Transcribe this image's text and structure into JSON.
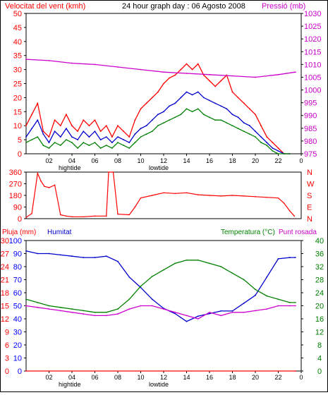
{
  "header": {
    "wind_label": "Velocitat del vent (kmh)",
    "title": "24 hour graph day : 06 Agosto 2008",
    "pressure_label": "Pressió (mb)"
  },
  "mid_labels": {
    "pluja": "Pluja (mm)",
    "humitat": "Humitat",
    "temperatura": "Temperatura (°C)",
    "punt_rosada": "Punt rosada"
  },
  "tide_labels": {
    "high": "hightide",
    "low": "lowtide"
  },
  "colors": {
    "red": "#ff0000",
    "blue": "#0000cc",
    "green": "#008000",
    "magenta": "#cc00cc",
    "pressure_axis": "#cc00cc",
    "left_axis_blue": "#0000ff",
    "left_axis_red": "#ff0000"
  },
  "chart_data": [
    {
      "type": "line",
      "name": "wind_pressure",
      "x_ticks": [
        "02",
        "04",
        "06",
        "08",
        "10",
        "12",
        "14",
        "16",
        "18",
        "20",
        "22",
        "0"
      ],
      "left_axis": {
        "label": "Velocitat del vent (kmh)",
        "range": [
          0,
          50
        ],
        "ticks": [
          0,
          5,
          10,
          15,
          20,
          25,
          30,
          35,
          40,
          45,
          50
        ]
      },
      "right_axis": {
        "label": "Pressió (mb)",
        "range": [
          975,
          1030
        ],
        "ticks": [
          975,
          980,
          985,
          990,
          995,
          1000,
          1005,
          1010,
          1015,
          1020,
          1025,
          1030
        ]
      },
      "series": [
        {
          "color": "red",
          "axis": "left",
          "hours": [
            0,
            0.5,
            1,
            1.5,
            2,
            2.5,
            3,
            3.5,
            4,
            4.5,
            5,
            5.5,
            6,
            6.5,
            7,
            7.5,
            8,
            8.5,
            9,
            9.5,
            10,
            10.5,
            11,
            11.5,
            12,
            12.5,
            13,
            13.5,
            14,
            14.5,
            15,
            15.5,
            16,
            16.5,
            17,
            17.5,
            18,
            18.5,
            19,
            19.5,
            20,
            20.5,
            21,
            21.5,
            22,
            22.5,
            23
          ],
          "values": [
            10,
            14,
            18,
            8,
            6,
            12,
            10,
            14,
            10,
            8,
            12,
            10,
            12,
            8,
            10,
            6,
            10,
            8,
            6,
            12,
            16,
            18,
            20,
            22,
            25,
            27,
            28,
            30,
            32,
            30,
            32,
            28,
            26,
            24,
            26,
            28,
            22,
            20,
            18,
            16,
            14,
            10,
            6,
            4,
            2,
            0,
            0
          ]
        },
        {
          "color": "blue",
          "axis": "left",
          "hours": [
            0,
            0.5,
            1,
            1.5,
            2,
            2.5,
            3,
            3.5,
            4,
            4.5,
            5,
            5.5,
            6,
            6.5,
            7,
            7.5,
            8,
            8.5,
            9,
            9.5,
            10,
            10.5,
            11,
            11.5,
            12,
            12.5,
            13,
            13.5,
            14,
            14.5,
            15,
            15.5,
            16,
            16.5,
            17,
            17.5,
            18,
            18.5,
            19,
            19.5,
            20,
            20.5,
            21,
            21.5,
            22,
            22.5,
            23
          ],
          "values": [
            6,
            9,
            12,
            7,
            4,
            8,
            6,
            9,
            6,
            5,
            8,
            6,
            8,
            5,
            6,
            4,
            6,
            5,
            4,
            7,
            9,
            10,
            12,
            14,
            15,
            17,
            18,
            20,
            22,
            21,
            22,
            20,
            19,
            18,
            17,
            16,
            14,
            13,
            11,
            10,
            8,
            6,
            4,
            2,
            1,
            0,
            0
          ]
        },
        {
          "color": "green",
          "axis": "left",
          "hours": [
            0,
            0.5,
            1,
            1.5,
            2,
            2.5,
            3,
            3.5,
            4,
            4.5,
            5,
            5.5,
            6,
            6.5,
            7,
            7.5,
            8,
            8.5,
            9,
            9.5,
            10,
            10.5,
            11,
            11.5,
            12,
            12.5,
            13,
            13.5,
            14,
            14.5,
            15,
            15.5,
            16,
            16.5,
            17,
            17.5,
            18,
            18.5,
            19,
            19.5,
            20,
            20.5,
            21,
            21.5,
            22,
            22.5,
            23
          ],
          "values": [
            4,
            5,
            6,
            3,
            2,
            4,
            3,
            5,
            4,
            2,
            4,
            3,
            4,
            2,
            3,
            2,
            4,
            3,
            2,
            4,
            6,
            7,
            8,
            10,
            11,
            12,
            13,
            14,
            16,
            15,
            16,
            14,
            13,
            12,
            12,
            11,
            10,
            9,
            8,
            7,
            6,
            4,
            3,
            1,
            0,
            0,
            0
          ]
        },
        {
          "color": "magenta",
          "axis": "right",
          "hours": [
            0,
            2,
            4,
            6,
            8,
            10,
            12,
            14,
            16,
            18,
            20,
            22,
            23.5
          ],
          "values": [
            1012,
            1011.5,
            1010.5,
            1010,
            1009,
            1008,
            1007,
            1006.5,
            1006,
            1005.5,
            1005,
            1006,
            1007
          ]
        }
      ]
    },
    {
      "type": "line",
      "name": "wind_direction",
      "x_ticks": [],
      "left_axis": {
        "range": [
          0,
          360
        ],
        "ticks": [
          0,
          90,
          180,
          270,
          360
        ]
      },
      "right_axis": {
        "ticks": [
          "N",
          "E",
          "S",
          "W",
          "N"
        ]
      },
      "series": [
        {
          "color": "red",
          "hours": [
            0,
            0.5,
            1,
            1.3,
            1.6,
            2,
            2.5,
            3,
            3.5,
            4,
            5,
            6,
            7,
            7.2,
            7.6,
            8,
            9,
            9.5,
            10,
            11,
            12,
            13,
            14,
            15,
            16,
            17,
            18,
            19,
            20,
            21,
            22,
            22.5,
            23,
            23.4
          ],
          "values": [
            10,
            40,
            350,
            290,
            250,
            240,
            260,
            30,
            20,
            15,
            15,
            20,
            20,
            360,
            360,
            35,
            30,
            90,
            160,
            180,
            200,
            195,
            200,
            185,
            180,
            175,
            180,
            175,
            170,
            165,
            160,
            120,
            60,
            20
          ]
        }
      ]
    },
    {
      "type": "line",
      "name": "humidity_temperature",
      "x_ticks": [
        "02",
        "04",
        "06",
        "08",
        "10",
        "12",
        "14",
        "16",
        "18",
        "20",
        "22",
        "0"
      ],
      "left_axis_humitat": {
        "label": "Humitat",
        "range": [
          0,
          100
        ],
        "ticks": [
          0,
          10,
          20,
          30,
          40,
          50,
          60,
          70,
          80,
          90,
          100
        ]
      },
      "left_axis_pluja": {
        "label": "Pluja (mm)",
        "range": [
          0,
          30
        ],
        "ticks": [
          0,
          3,
          6,
          9,
          12,
          15,
          18,
          21,
          24,
          27,
          30
        ]
      },
      "right_axis": {
        "label": "Temperatura (°C)",
        "range": [
          0,
          40
        ],
        "ticks": [
          0,
          4,
          8,
          12,
          16,
          20,
          24,
          28,
          32,
          36,
          40
        ]
      },
      "series": [
        {
          "name": "Humitat",
          "color": "blue",
          "axis": "humitat",
          "hours": [
            0,
            1,
            2,
            3,
            4,
            5,
            6,
            7,
            8,
            9,
            10,
            11,
            12,
            13,
            14,
            15,
            16,
            17,
            18,
            19,
            20,
            21,
            22,
            23,
            23.5
          ],
          "values": [
            92,
            90,
            90,
            89,
            88,
            87,
            87,
            88,
            84,
            72,
            64,
            55,
            48,
            44,
            38,
            42,
            44,
            46,
            46,
            52,
            58,
            72,
            86,
            87,
            87
          ]
        },
        {
          "name": "Temperatura",
          "color": "green",
          "axis": "temp",
          "hours": [
            0,
            1,
            2,
            3,
            4,
            5,
            6,
            7,
            8,
            9,
            10,
            11,
            12,
            13,
            14,
            15,
            16,
            17,
            18,
            19,
            20,
            21,
            22,
            23,
            23.5
          ],
          "values": [
            22,
            21,
            20,
            19.5,
            19,
            18.5,
            18,
            18,
            19,
            22,
            26,
            29,
            31,
            33,
            34,
            34,
            33,
            32,
            30,
            28,
            25,
            23,
            22,
            21,
            21
          ]
        },
        {
          "name": "Punt rosada",
          "color": "magenta",
          "axis": "temp",
          "hours": [
            0,
            1,
            2,
            3,
            4,
            5,
            6,
            7,
            8,
            9,
            10,
            11,
            12,
            13,
            14,
            15,
            16,
            17,
            18,
            19,
            20,
            21,
            22,
            23,
            23.5
          ],
          "values": [
            20,
            19.5,
            19,
            18.5,
            18,
            17.5,
            17,
            17,
            17.5,
            19,
            20,
            20,
            19,
            18,
            17,
            16,
            18,
            17,
            18,
            18,
            18.5,
            19,
            20,
            20,
            20
          ]
        },
        {
          "name": "Pluja",
          "color": "red",
          "axis": "pluja",
          "hours": [
            0,
            23.5
          ],
          "values": [
            0,
            0
          ]
        }
      ]
    }
  ]
}
